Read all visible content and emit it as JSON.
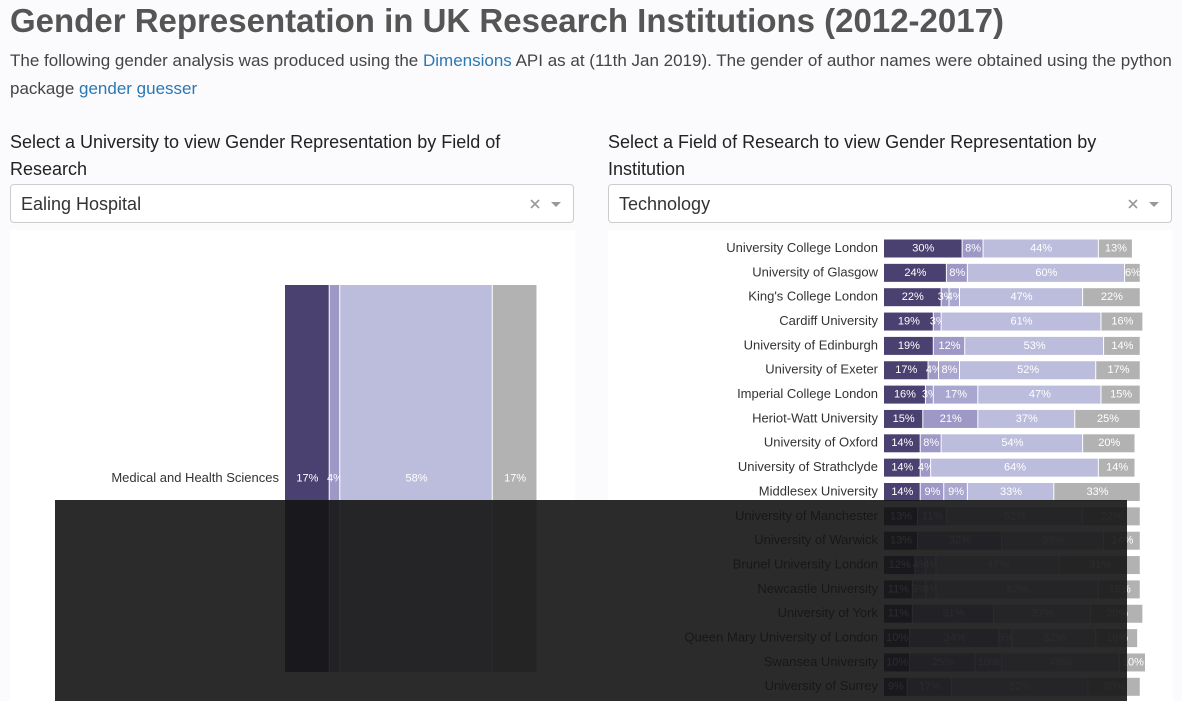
{
  "header": {
    "title": "Gender Representation in UK Research Institutions (2012-2017)",
    "intro": [
      "The following gender analysis was produced using the ",
      "Dimensions",
      " API as at (11th Jan 2019). The gender of author names were obtained using the python package ",
      "gender guesser"
    ]
  },
  "left": {
    "label": "Select a University to view Gender Representation by Field of Research",
    "selected": "Ealing Hospital"
  },
  "right": {
    "label": "Select a Field of Research to view Gender Representation by Institution",
    "selected": "Technology"
  },
  "chart_data": [
    {
      "type": "bar",
      "orientation": "horizontal",
      "stacked": true,
      "xlim": [
        0,
        100
      ],
      "categories": [
        "Medical and Health Sciences"
      ],
      "series": [
        {
          "color": "#4b4170",
          "values": [
            17
          ],
          "value_labels": [
            "17%"
          ]
        },
        {
          "color": "#9d98c6",
          "values": [
            4
          ],
          "value_labels": [
            "4%"
          ]
        },
        {
          "color": "#a9a6cf",
          "values": [
            null
          ],
          "value_labels": [
            null
          ]
        },
        {
          "color": "#bcbcdc",
          "values": [
            58
          ],
          "value_labels": [
            "58%"
          ]
        },
        {
          "color": "#b2b2b2",
          "values": [
            17
          ],
          "value_labels": [
            "17%"
          ]
        }
      ]
    },
    {
      "type": "bar",
      "orientation": "horizontal",
      "stacked": true,
      "xlim": [
        0,
        100
      ],
      "categories": [
        "University College London",
        "University of Glasgow",
        "King's College London",
        "Cardiff University",
        "University of Edinburgh",
        "University of Exeter",
        "Imperial College London",
        "Heriot-Watt University",
        "University of Oxford",
        "University of Strathclyde",
        "Middlesex University",
        "University of Manchester",
        "University of Warwick",
        "Brunel University London",
        "Newcastle University",
        "University of York",
        "Queen Mary University of London",
        "Swansea University",
        "University of Surrey"
      ],
      "series": [
        {
          "color": "#4b4170",
          "values": [
            30,
            24,
            22,
            19,
            19,
            17,
            16,
            15,
            14,
            14,
            14,
            13,
            13,
            12,
            11,
            11,
            10,
            10,
            9
          ],
          "value_labels": [
            "30%",
            "24%",
            "22%",
            "19%",
            "19%",
            "17%",
            "16%",
            "15%",
            "14%",
            "14%",
            "14%",
            "13%",
            "13%",
            "12%",
            "11%",
            "11%",
            "10%",
            "10%",
            "9%"
          ]
        },
        {
          "color": "#9d98c6",
          "values": [
            8,
            8,
            3,
            3,
            12,
            4,
            3,
            21,
            8,
            4,
            9,
            11,
            32,
            4,
            5,
            31,
            34,
            25,
            17
          ],
          "value_labels": [
            "8%",
            "8%",
            "3%",
            "3%",
            "12%",
            "4%",
            "3%",
            "21%",
            "8%",
            "4%",
            "9%",
            "11%",
            "32%",
            "4%",
            "5%",
            "31%",
            "34%",
            "25%",
            "17%"
          ]
        },
        {
          "color": "#a9a6cf",
          "values": [
            null,
            null,
            4,
            null,
            null,
            8,
            17,
            null,
            null,
            null,
            9,
            null,
            null,
            4,
            4,
            null,
            5,
            10,
            null
          ],
          "value_labels": [
            null,
            null,
            "4%",
            null,
            null,
            "8%",
            "17%",
            null,
            null,
            null,
            "9%",
            null,
            null,
            "4%",
            "4%",
            null,
            "5%",
            "10%",
            null
          ]
        },
        {
          "color": "#bcbcdc",
          "values": [
            44,
            60,
            47,
            61,
            53,
            52,
            47,
            37,
            54,
            64,
            33,
            52,
            39,
            47,
            62,
            37,
            32,
            45,
            52
          ],
          "value_labels": [
            "44%",
            "60%",
            "47%",
            "61%",
            "53%",
            "52%",
            "47%",
            "37%",
            "54%",
            "64%",
            "33%",
            "52%",
            "39%",
            "47%",
            "62%",
            "37%",
            "32%",
            "45%",
            "52%"
          ]
        },
        {
          "color": "#b2b2b2",
          "values": [
            13,
            6,
            22,
            16,
            14,
            17,
            15,
            25,
            20,
            14,
            33,
            22,
            14,
            31,
            16,
            20,
            16,
            10,
            20
          ],
          "value_labels": [
            "13%",
            "6%",
            "22%",
            "16%",
            "14%",
            "17%",
            "15%",
            "25%",
            "20%",
            "14%",
            "33%",
            "22%",
            "14%",
            "31%",
            "16%",
            "20%",
            "16%",
            "10%",
            "20%"
          ]
        }
      ]
    }
  ]
}
